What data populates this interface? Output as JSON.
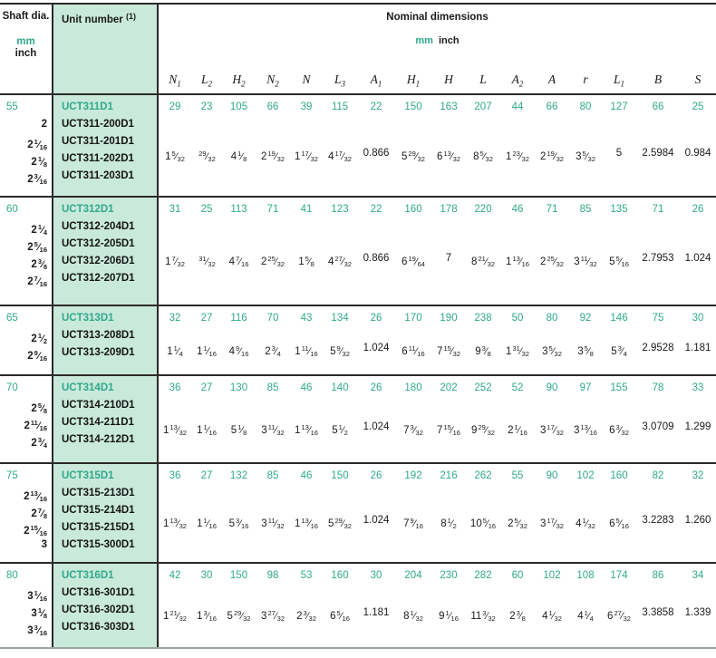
{
  "colors": {
    "accent_teal": "#2fa98a",
    "mint_bg": "#c9e9db",
    "line_dark": "#2a2a2a",
    "line_bottom": "#98a5a0"
  },
  "header": {
    "shaft_title": "Shaft dia.",
    "shaft_mm": "mm",
    "shaft_inch": "inch",
    "unit_title": "Unit number",
    "unit_note": "1",
    "nominal_title": "Nominal dimensions",
    "units_mm": "mm",
    "units_inch": "inch",
    "columns": [
      {
        "sym": "N",
        "sub": "1"
      },
      {
        "sym": "L",
        "sub": "2"
      },
      {
        "sym": "H",
        "sub": "2"
      },
      {
        "sym": "N",
        "sub": "2"
      },
      {
        "sym": "N",
        "sub": ""
      },
      {
        "sym": "L",
        "sub": "3"
      },
      {
        "sym": "A",
        "sub": "1"
      },
      {
        "sym": "H",
        "sub": "1"
      },
      {
        "sym": "H",
        "sub": ""
      },
      {
        "sym": "L",
        "sub": ""
      },
      {
        "sym": "A",
        "sub": "2"
      },
      {
        "sym": "A",
        "sub": ""
      },
      {
        "sym": "r",
        "sub": ""
      },
      {
        "sym": "L",
        "sub": "1"
      },
      {
        "sym": "B",
        "sub": ""
      },
      {
        "sym": "S",
        "sub": ""
      }
    ]
  },
  "blocks": [
    {
      "shaft_mm": "55",
      "shaft_inches": [
        "2",
        "2 1/16",
        "2 1/8",
        "2 3/16"
      ],
      "series_unit": "UCT311D1",
      "units": [
        "UCT311-200D1",
        "UCT311-201D1",
        "UCT311-202D1",
        "UCT311-203D1"
      ],
      "mm": [
        "29",
        "23",
        "105",
        "66",
        "39",
        "115",
        "22",
        "150",
        "163",
        "207",
        "44",
        "66",
        "80",
        "127",
        "66",
        "25"
      ],
      "inch": [
        "1 5/32",
        "29/32",
        "4 1/8",
        "2 19/32",
        "1 17/32",
        "4 17/32",
        "0.866",
        "5 29/32",
        "6 13/32",
        "8 5/32",
        "1 23/32",
        "2 19/32",
        "3 5/32",
        "5",
        "2.5984",
        "0.984"
      ]
    },
    {
      "shaft_mm": "60",
      "shaft_inches": [
        "2 1/4",
        "2 5/16",
        "2 3/8",
        "2 7/16"
      ],
      "series_unit": "UCT312D1",
      "units": [
        "UCT312-204D1",
        "UCT312-205D1",
        "UCT312-206D1",
        "UCT312-207D1"
      ],
      "mm": [
        "31",
        "25",
        "113",
        "71",
        "41",
        "123",
        "22",
        "160",
        "178",
        "220",
        "46",
        "71",
        "85",
        "135",
        "71",
        "26"
      ],
      "inch": [
        "1 7/32",
        "31/32",
        "4 7/16",
        "2 25/32",
        "1 5/8",
        "4 27/32",
        "0.866",
        "6 19/64",
        "7",
        "8 21/32",
        "1 13/16",
        "2 25/32",
        "3 11/32",
        "5 5/16",
        "2.7953",
        "1.024"
      ]
    },
    {
      "shaft_mm": "65",
      "shaft_inches": [
        "2 1/2",
        "2 9/16"
      ],
      "series_unit": "UCT313D1",
      "units": [
        "UCT313-208D1",
        "UCT313-209D1"
      ],
      "mm": [
        "32",
        "27",
        "116",
        "70",
        "43",
        "134",
        "26",
        "170",
        "190",
        "238",
        "50",
        "80",
        "92",
        "146",
        "75",
        "30"
      ],
      "inch": [
        "1 1/4",
        "1 1/16",
        "4 9/16",
        "2 3/4",
        "1 11/16",
        "5 9/32",
        "1.024",
        "6 11/16",
        "7 15/32",
        "9 3/8",
        "1 31/32",
        "3 5/32",
        "3 5/8",
        "5 3/4",
        "2.9528",
        "1.181"
      ]
    },
    {
      "shaft_mm": "70",
      "shaft_inches": [
        "2 5/8",
        "2 11/16",
        "2 3/4"
      ],
      "series_unit": "UCT314D1",
      "units": [
        "UCT314-210D1",
        "UCT314-211D1",
        "UCT314-212D1"
      ],
      "mm": [
        "36",
        "27",
        "130",
        "85",
        "46",
        "140",
        "26",
        "180",
        "202",
        "252",
        "52",
        "90",
        "97",
        "155",
        "78",
        "33"
      ],
      "inch": [
        "1 13/32",
        "1 1/16",
        "5 1/8",
        "3 11/32",
        "1 13/16",
        "5 1/2",
        "1.024",
        "7 3/32",
        "7 15/16",
        "9 29/32",
        "2 1/16",
        "3 17/32",
        "3 13/16",
        "6 3/32",
        "3.0709",
        "1.299"
      ]
    },
    {
      "shaft_mm": "75",
      "shaft_inches": [
        "2 13/16",
        "2 7/8",
        "2 15/16",
        "3"
      ],
      "series_unit": "UCT315D1",
      "units": [
        "UCT315-213D1",
        "UCT315-214D1",
        "UCT315-215D1",
        "UCT315-300D1"
      ],
      "mm": [
        "36",
        "27",
        "132",
        "85",
        "46",
        "150",
        "26",
        "192",
        "216",
        "262",
        "55",
        "90",
        "102",
        "160",
        "82",
        "32"
      ],
      "inch": [
        "1 13/32",
        "1 1/16",
        "5 3/16",
        "3 11/32",
        "1 13/16",
        "5 29/32",
        "1.024",
        "7 9/16",
        "8 1/2",
        "10 5/16",
        "2 5/32",
        "3 17/32",
        "4 1/32",
        "6 5/16",
        "3.2283",
        "1.260"
      ]
    },
    {
      "shaft_mm": "80",
      "shaft_inches": [
        "3 1/16",
        "3 1/8",
        "3 3/16"
      ],
      "series_unit": "UCT316D1",
      "units": [
        "UCT316-301D1",
        "UCT316-302D1",
        "UCT316-303D1"
      ],
      "mm": [
        "42",
        "30",
        "150",
        "98",
        "53",
        "160",
        "30",
        "204",
        "230",
        "282",
        "60",
        "102",
        "108",
        "174",
        "86",
        "34"
      ],
      "inch": [
        "1 21/32",
        "1 3/16",
        "5 29/32",
        "3 27/32",
        "2 3/32",
        "6 5/16",
        "1.181",
        "8 1/32",
        "9 1/16",
        "11 3/32",
        "2 3/8",
        "4 1/32",
        "4 1/4",
        "6 27/32",
        "3.3858",
        "1.339"
      ]
    }
  ]
}
